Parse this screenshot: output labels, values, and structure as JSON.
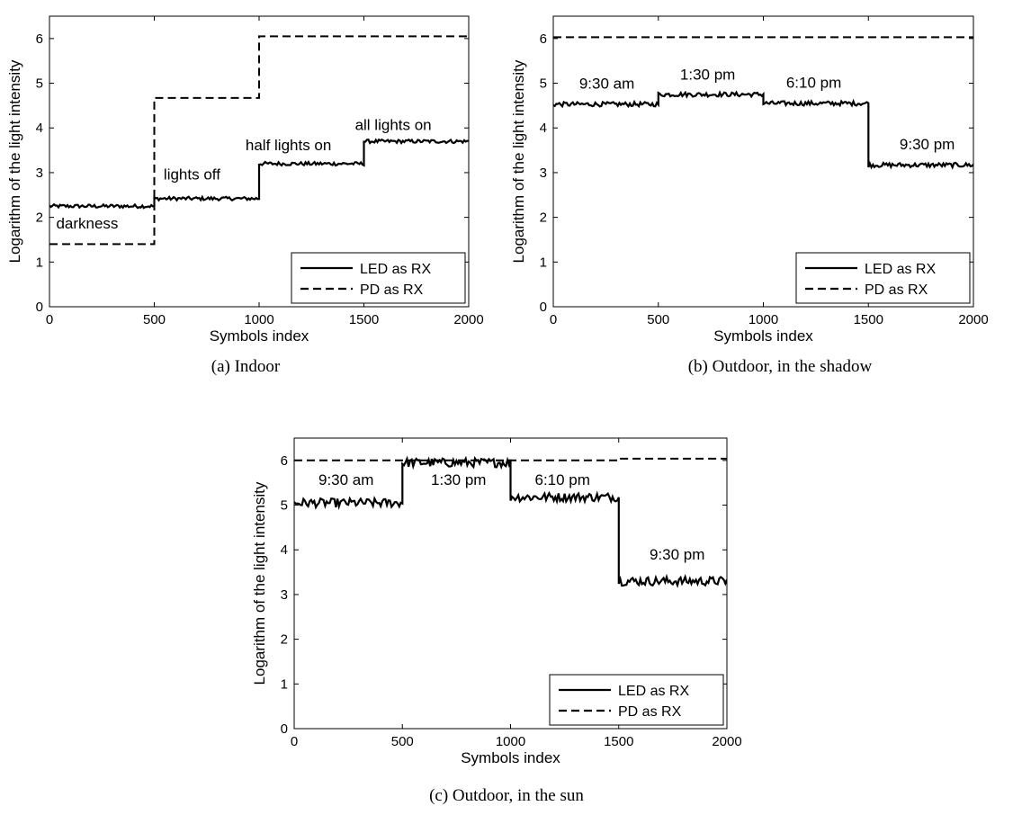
{
  "chart_data": [
    {
      "type": "line",
      "caption": "(a) Indoor",
      "xlabel": "Symbols index",
      "ylabel": "Logarithm of the light intensity",
      "xlim": [
        0,
        2000
      ],
      "ylim": [
        0,
        6.5
      ],
      "xticks": [
        "0",
        "500",
        "1000",
        "1500",
        "2000"
      ],
      "yticks": [
        "0",
        "1",
        "2",
        "3",
        "4",
        "5",
        "6"
      ],
      "grid": false,
      "legend_position": "bottom-right",
      "series": [
        {
          "name": "LED as RX",
          "style": "solid",
          "noise": 0.04,
          "segments": [
            [
              0,
              500,
              2.25
            ],
            [
              500,
              1000,
              2.42
            ],
            [
              1000,
              1500,
              3.2
            ],
            [
              1500,
              2000,
              3.7
            ]
          ]
        },
        {
          "name": "PD as RX",
          "style": "dashed",
          "noise": 0,
          "segments": [
            [
              0,
              500,
              1.4
            ],
            [
              500,
              1000,
              4.67
            ],
            [
              1000,
              1500,
              6.05
            ],
            [
              1500,
              2000,
              6.05
            ]
          ]
        }
      ],
      "annotations": [
        {
          "text": "darkness",
          "x": 180,
          "y": 1.75
        },
        {
          "text": "lights off",
          "x": 680,
          "y": 2.85
        },
        {
          "text": "half lights on",
          "x": 1140,
          "y": 3.5
        },
        {
          "text": "all lights on",
          "x": 1640,
          "y": 3.95
        }
      ]
    },
    {
      "type": "line",
      "caption": "(b) Outdoor, in the shadow",
      "xlabel": "Symbols index",
      "ylabel": "Logarithm of the light intensity",
      "xlim": [
        0,
        2000
      ],
      "ylim": [
        0,
        6.5
      ],
      "xticks": [
        "0",
        "500",
        "1000",
        "1500",
        "2000"
      ],
      "yticks": [
        "0",
        "1",
        "2",
        "3",
        "4",
        "5",
        "6"
      ],
      "grid": false,
      "legend_position": "bottom-right",
      "series": [
        {
          "name": "LED as RX",
          "style": "solid",
          "noise": 0.05,
          "segments": [
            [
              0,
              500,
              4.53
            ],
            [
              500,
              1000,
              4.75
            ],
            [
              1000,
              1500,
              4.55
            ],
            [
              1500,
              2000,
              3.17
            ]
          ]
        },
        {
          "name": "PD as RX",
          "style": "dashed",
          "noise": 0,
          "segments": [
            [
              0,
              2000,
              6.03
            ]
          ]
        }
      ],
      "annotations": [
        {
          "text": "9:30 am",
          "x": 255,
          "y": 4.88
        },
        {
          "text": "1:30 pm",
          "x": 735,
          "y": 5.08
        },
        {
          "text": "6:10 pm",
          "x": 1240,
          "y": 4.9
        },
        {
          "text": "9:30 pm",
          "x": 1780,
          "y": 3.52
        }
      ]
    },
    {
      "type": "line",
      "caption": "(c) Outdoor, in the sun",
      "xlabel": "Symbols index",
      "ylabel": "Logarithm of the light intensity",
      "xlim": [
        0,
        2000
      ],
      "ylim": [
        0,
        6.5
      ],
      "xticks": [
        "0",
        "500",
        "1000",
        "1500",
        "2000"
      ],
      "yticks": [
        "0",
        "1",
        "2",
        "3",
        "4",
        "5",
        "6"
      ],
      "grid": false,
      "legend_position": "bottom-right",
      "series": [
        {
          "name": "LED as RX",
          "style": "solid",
          "noise": 0.1,
          "segments": [
            [
              0,
              500,
              5.05
            ],
            [
              500,
              1000,
              5.95
            ],
            [
              1000,
              1500,
              5.18
            ],
            [
              1500,
              2000,
              3.3
            ]
          ]
        },
        {
          "name": "PD as RX",
          "style": "dashed",
          "noise": 0,
          "segments": [
            [
              0,
              1500,
              6.0
            ],
            [
              1500,
              2000,
              6.04
            ]
          ]
        }
      ],
      "annotations": [
        {
          "text": "9:30 am",
          "x": 240,
          "y": 5.45
        },
        {
          "text": "1:30 pm",
          "x": 760,
          "y": 5.45
        },
        {
          "text": "6:10 pm",
          "x": 1240,
          "y": 5.45
        },
        {
          "text": "9:30 pm",
          "x": 1770,
          "y": 3.78
        }
      ]
    }
  ]
}
